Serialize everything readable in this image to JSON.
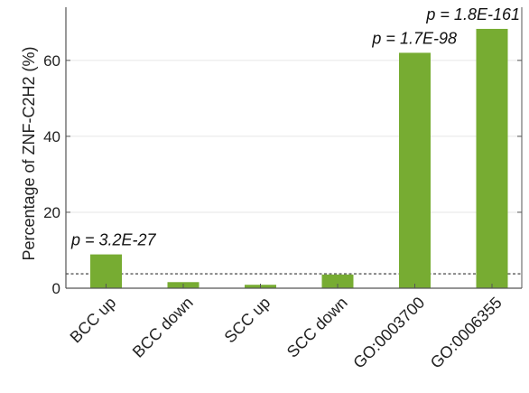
{
  "chart_data": {
    "type": "bar",
    "categories": [
      "BCC up",
      "BCC down",
      "SCC up",
      "SCC down",
      "GO:0003700",
      "GO:0006355"
    ],
    "values": [
      8.9,
      1.6,
      0.9,
      3.6,
      62.0,
      68.3
    ],
    "ylabel": "Percentage of ZNF-C2H2 (%)",
    "ylim": [
      0,
      74
    ],
    "yticks": [
      0,
      20,
      40,
      60
    ],
    "grid": true,
    "bar_color": "#77ac32",
    "reference_line": {
      "value": 3.8,
      "style": "dashed"
    },
    "annotations": [
      {
        "category_index": 0,
        "text": "p = 3.2E-27"
      },
      {
        "category_index": 4,
        "text": "p = 1.7E-98"
      },
      {
        "category_index": 5,
        "text": "p = 1.8E-161"
      }
    ]
  }
}
